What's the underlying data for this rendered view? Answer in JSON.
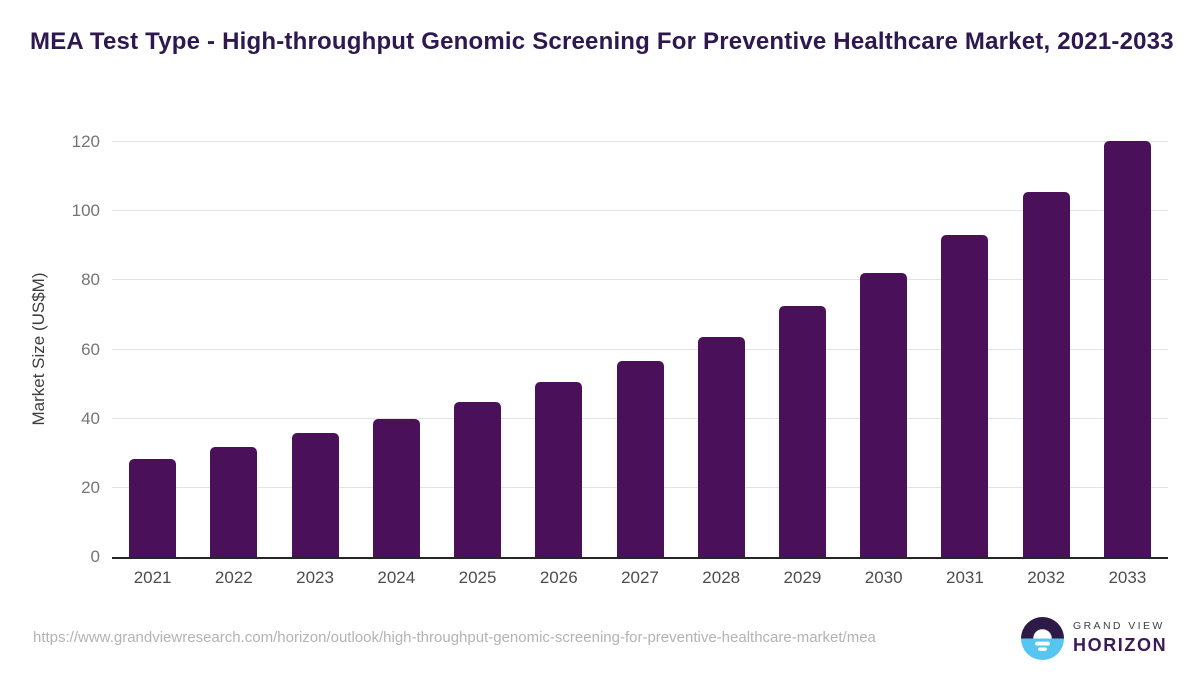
{
  "page": {
    "title": "MEA Test Type - High-throughput Genomic Screening For Preventive Healthcare Market, 2021-2033"
  },
  "chart_data": {
    "type": "bar",
    "title": "MEA Test Type - High-throughput Genomic Screening For Preventive Healthcare Market, 2021-2033",
    "categories": [
      "2021",
      "2022",
      "2023",
      "2024",
      "2025",
      "2026",
      "2027",
      "2028",
      "2029",
      "2030",
      "2031",
      "2032",
      "2033"
    ],
    "values": [
      28.4,
      31.9,
      35.8,
      40.0,
      44.7,
      50.5,
      56.6,
      63.7,
      72.5,
      82.0,
      93.0,
      105.5,
      120.2
    ],
    "xlabel": "",
    "ylabel": "Market Size (US$M)",
    "ylim": [
      0,
      120
    ],
    "yticks": [
      0,
      20,
      40,
      60,
      80,
      100,
      120
    ],
    "grid": true,
    "legend": false,
    "bar_color": "#4a1059"
  },
  "footer": {
    "source_url": "https://www.grandviewresearch.com/horizon/outlook/high-throughput-genomic-screening-for-preventive-healthcare-market/mea",
    "logo": {
      "icon": "grand-view-horizon-logo-icon",
      "line1": "GRAND VIEW",
      "line2": "HORIZON"
    }
  },
  "colors": {
    "bar": "#4a1059",
    "title_text": "#2e1850",
    "gridline": "#e3e3e3",
    "axis_line": "#262626",
    "y_tick_text": "#757575",
    "x_tick_text": "#4d4d4d",
    "axis_title_text": "#3d3d3d",
    "url_text": "#b3b3b3",
    "logo_purple": "#2e1a47",
    "logo_blue": "#56c5f0",
    "logo_grandview_text": "#3f3f46",
    "logo_horizon_text": "#3a1b55"
  }
}
